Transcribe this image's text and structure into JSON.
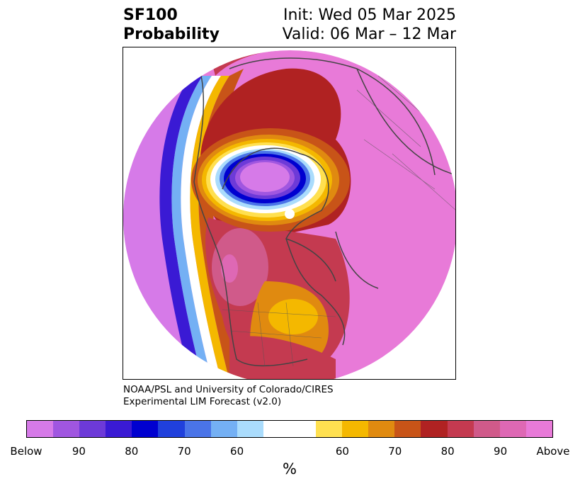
{
  "header": {
    "title_line1": "SF100",
    "title_line2": "Probability",
    "init": "Init: Wed 05 Mar 2025",
    "valid": "Valid: 06 Mar – 12 Mar"
  },
  "credit": {
    "line1": "NOAA/PSL and University of Colorado/CIRES",
    "line2": "Experimental LIM Forecast (v2.0)"
  },
  "colorbar": {
    "unit": "%",
    "colors": [
      "#d67ae8",
      "#a056e0",
      "#6d3ad8",
      "#3a1ad4",
      "#0000d0",
      "#2040dc",
      "#4a74e8",
      "#74b0f4",
      "#aadcfc",
      "#ffffff",
      "#ffffff",
      "#ffe050",
      "#f4b800",
      "#e08a10",
      "#c85418",
      "#b02222",
      "#c43a50",
      "#d05a8a",
      "#de68b4",
      "#e87ad8"
    ],
    "ticks": [
      "Below",
      "90",
      "80",
      "70",
      "60",
      "60",
      "70",
      "80",
      "90",
      "Above"
    ]
  },
  "map": {
    "background_color": "#e87ad8",
    "pole_marker_color": "#ffffff"
  }
}
